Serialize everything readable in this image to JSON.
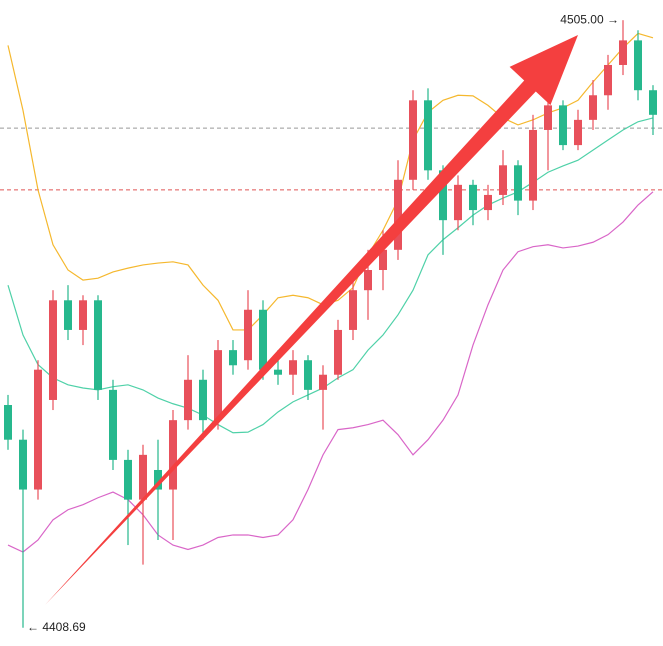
{
  "chart_data": {
    "type": "candlestick",
    "max_label": "4505.00 →",
    "min_label": "← 4408.69",
    "ylim": [
      4405.8,
      4508.2
    ],
    "up_color": "#e8505b",
    "down_color": "#26b88d",
    "hlines": [
      {
        "value": 4487.9,
        "color": "#999999"
      },
      {
        "value": 4478.1,
        "color": "#e05555"
      }
    ],
    "open": [
      4444.0,
      4438.5,
      4430.6,
      4444.8,
      4460.6,
      4455.9,
      4460.6,
      4446.4,
      4435.3,
      4429.0,
      4433.7,
      4430.6,
      4441.6,
      4448.0,
      4441.6,
      4452.7,
      4451.1,
      4459.1,
      4449.6,
      4448.8,
      4451.1,
      4446.4,
      4448.8,
      4455.9,
      4462.2,
      4465.4,
      4468.6,
      4479.7,
      4492.3,
      4481.2,
      4473.3,
      4478.9,
      4474.9,
      4477.3,
      4482.0,
      4476.4,
      4487.6,
      4491.5,
      4485.2,
      4489.2,
      4493.1,
      4497.9,
      4501.8,
      4493.9
    ],
    "high": [
      4445.6,
      4440.1,
      4451.1,
      4462.2,
      4463.0,
      4461.4,
      4461.4,
      4448.0,
      4436.9,
      4437.7,
      4438.5,
      4443.2,
      4451.9,
      4449.6,
      4454.3,
      4454.3,
      4462.2,
      4460.6,
      4452.7,
      4452.7,
      4451.9,
      4450.3,
      4457.5,
      4463.8,
      4468.6,
      4471.7,
      4482.8,
      4493.9,
      4494.2,
      4482.0,
      4480.4,
      4479.7,
      4478.9,
      4484.4,
      4482.8,
      4490.0,
      4492.3,
      4492.3,
      4490.8,
      4495.5,
      4499.5,
      4505.0,
      4503.4,
      4494.7
    ],
    "low": [
      4436.9,
      4408.69,
      4429.0,
      4443.2,
      4454.3,
      4453.5,
      4444.8,
      4433.7,
      4421.8,
      4418.7,
      4422.6,
      4422.6,
      4440.1,
      4438.5,
      4440.1,
      4448.8,
      4449.6,
      4448.0,
      4447.2,
      4445.6,
      4444.8,
      4440.1,
      4448.0,
      4454.3,
      4457.5,
      4462.2,
      4467.0,
      4478.1,
      4479.7,
      4467.8,
      4471.7,
      4472.5,
      4473.3,
      4475.7,
      4474.1,
      4474.9,
      4481.2,
      4484.4,
      4484.4,
      4487.6,
      4490.8,
      4496.3,
      4492.3,
      4486.8
    ],
    "close": [
      4438.5,
      4430.6,
      4449.6,
      4460.6,
      4455.9,
      4460.6,
      4446.4,
      4435.3,
      4429.0,
      4436.1,
      4430.6,
      4441.6,
      4448.0,
      4441.6,
      4452.7,
      4450.3,
      4459.1,
      4449.6,
      4448.8,
      4451.1,
      4446.4,
      4448.8,
      4455.9,
      4462.2,
      4465.4,
      4468.6,
      4479.7,
      4492.3,
      4481.2,
      4473.3,
      4478.9,
      4474.9,
      4477.3,
      4482.0,
      4476.4,
      4487.6,
      4491.5,
      4485.2,
      4489.2,
      4493.1,
      4497.9,
      4501.8,
      4493.9,
      4490.0
    ],
    "series": [
      {
        "color": "#f5b82e",
        "values": [
          4501.0,
          4490.7,
          4478.1,
          4469.4,
          4465.4,
          4463.8,
          4464.1,
          4465.1,
          4465.7,
          4466.2,
          4466.5,
          4466.7,
          4466.2,
          4463.0,
          4460.6,
          4455.9,
          4455.9,
          4458.3,
          4461.0,
          4461.4,
          4461.0,
          4459.9,
          4460.6,
          4462.6,
          4467.8,
          4471.7,
          4476.5,
          4486.0,
          4490.4,
          4492.3,
          4493.1,
          4493.0,
          4491.5,
          4489.5,
          4488.4,
          4489.2,
          4490.3,
          4491.1,
          4492.3,
          4495.2,
          4497.9,
          4500.6,
          4502.9,
          4502.2
        ]
      },
      {
        "color": "#4fd1a8",
        "values": [
          4463.0,
          4455.1,
          4450.4,
          4448.3,
          4447.2,
          4446.7,
          4446.4,
          4446.9,
          4447.2,
          4446.4,
          4445.1,
          4444.2,
          4443.5,
          4442.4,
          4440.9,
          4439.6,
          4439.7,
          4440.9,
          4442.9,
          4444.5,
          4445.6,
          4446.7,
          4448.3,
          4449.6,
          4452.7,
          4455.1,
          4458.3,
          4462.2,
          4467.8,
          4470.2,
          4472.1,
          4474.1,
          4475.7,
          4476.8,
          4477.8,
          4479.3,
          4480.9,
          4481.9,
          4482.8,
          4484.4,
          4486.0,
          4487.6,
          4488.9,
          4489.5
        ]
      },
      {
        "color": "#d966c8",
        "values": [
          4421.8,
          4420.7,
          4422.6,
          4425.8,
          4427.4,
          4428.2,
          4429.3,
          4430.2,
          4429.0,
          4426.6,
          4423.4,
          4421.8,
          4421.1,
          4421.8,
          4423.0,
          4423.4,
          4423.4,
          4423.0,
          4423.4,
          4425.8,
          4430.6,
          4436.1,
          4440.1,
          4440.4,
          4440.9,
          4441.6,
          4439.3,
          4436.1,
          4438.5,
          4441.6,
          4445.6,
          4453.5,
          4459.9,
          4465.4,
          4468.3,
          4469.1,
          4469.4,
          4468.9,
          4469.2,
          4469.8,
          4471.0,
          4473.0,
          4475.7,
          4477.8
        ]
      }
    ]
  }
}
